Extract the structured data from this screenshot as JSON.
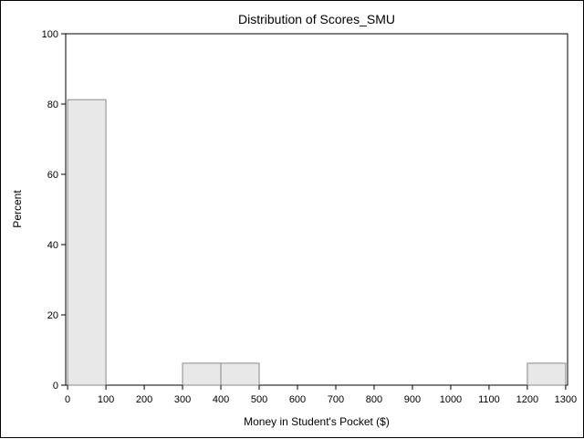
{
  "chart_data": {
    "type": "bar",
    "title": "Distribution of Scores_SMU",
    "xlabel": "Money in Student's Pocket ($)",
    "ylabel": "Percent",
    "xlim": [
      -5,
      1305
    ],
    "ylim": [
      0,
      100
    ],
    "xticks": [
      0,
      100,
      200,
      300,
      400,
      500,
      600,
      700,
      800,
      900,
      1000,
      1100,
      1200,
      1300
    ],
    "yticks": [
      0,
      20,
      40,
      60,
      80,
      100
    ],
    "bins": [
      {
        "start": 0,
        "end": 100,
        "value": 81.25
      },
      {
        "start": 300,
        "end": 400,
        "value": 6.25
      },
      {
        "start": 400,
        "end": 500,
        "value": 6.25
      },
      {
        "start": 1200,
        "end": 1300,
        "value": 6.25
      }
    ],
    "bar_fill": "#e8e8e8",
    "bar_stroke": "#8a8a8a",
    "grid": false
  }
}
